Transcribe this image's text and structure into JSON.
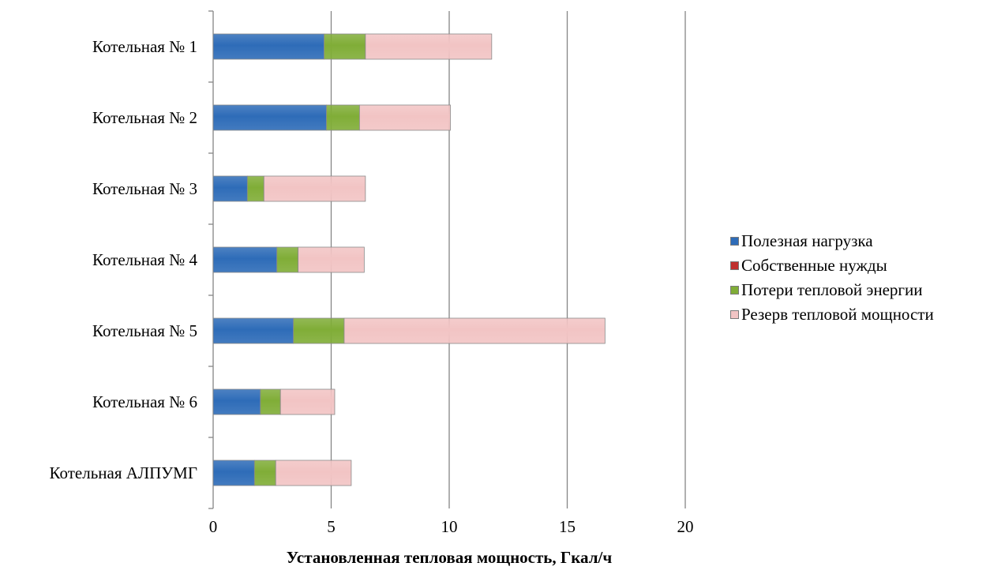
{
  "chart_data": {
    "type": "bar",
    "orientation": "horizontal",
    "stacked": true,
    "categories": [
      "Котельная № 1",
      "Котельная № 2",
      "Котельная № 3",
      "Котельная № 4",
      "Котельная № 5",
      "Котельная № 6",
      "Котельная АЛПУМГ"
    ],
    "series": [
      {
        "name": "Полезная нагрузка",
        "color": "#2e6cb8",
        "values": [
          4.7,
          4.8,
          1.45,
          2.7,
          3.4,
          2.0,
          1.75
        ]
      },
      {
        "name": "Собственные нужды",
        "color": "#c0312f",
        "values": [
          0,
          0,
          0,
          0,
          0,
          0,
          0
        ]
      },
      {
        "name": "Потери тепловой энергии",
        "color": "#80ad37",
        "values": [
          1.75,
          1.4,
          0.7,
          0.9,
          2.15,
          0.85,
          0.9
        ]
      },
      {
        "name": "Резерв тепловой мощности",
        "color": "#f2c4c4",
        "values": [
          5.35,
          3.85,
          4.3,
          2.8,
          11.05,
          2.3,
          3.2
        ]
      }
    ],
    "xlabel": "Установленная тепловая мощность, Гкал/ч",
    "ylabel": "",
    "xlim": [
      0,
      20
    ],
    "xticks": [
      0,
      5,
      10,
      15,
      20
    ],
    "grid": "vertical",
    "legend_position": "right"
  }
}
